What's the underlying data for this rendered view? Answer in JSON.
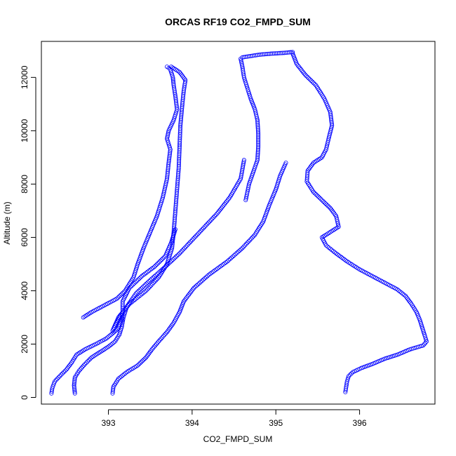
{
  "chart_data": {
    "type": "scatter",
    "title": "ORCAS RF19 CO2_FMPD_SUM",
    "xlabel": "CO2_FMPD_SUM",
    "ylabel": "Altitude (m)",
    "xlim": [
      392.2,
      396.9
    ],
    "ylim": [
      -250,
      13350
    ],
    "xticks": [
      393,
      394,
      395,
      396
    ],
    "yticks": [
      0,
      2000,
      4000,
      6000,
      8000,
      10000,
      12000
    ],
    "marker": "open-circle",
    "point_color": "#0000ff",
    "grid": false,
    "legend": "none",
    "series": [
      {
        "values": [
          [
            392.32,
            150
          ],
          [
            392.33,
            350
          ],
          [
            392.36,
            600
          ],
          [
            392.42,
            800
          ],
          [
            392.5,
            1050
          ],
          [
            392.56,
            1300
          ],
          [
            392.62,
            1600
          ],
          [
            392.72,
            1800
          ],
          [
            392.85,
            2000
          ],
          [
            392.97,
            2200
          ],
          [
            393.05,
            2400
          ],
          [
            393.12,
            2600
          ],
          [
            393.16,
            2900
          ],
          [
            393.17,
            3200
          ],
          [
            393.17,
            3600
          ],
          [
            393.25,
            4100
          ],
          [
            393.4,
            4550
          ],
          [
            393.55,
            4900
          ],
          [
            393.68,
            5300
          ],
          [
            393.75,
            5800
          ],
          [
            393.8,
            6300
          ]
        ]
      },
      {
        "values": [
          [
            392.6,
            150
          ],
          [
            392.59,
            450
          ],
          [
            392.6,
            750
          ],
          [
            392.65,
            1000
          ],
          [
            392.72,
            1250
          ],
          [
            392.8,
            1500
          ],
          [
            392.9,
            1700
          ],
          [
            393.0,
            1900
          ],
          [
            393.08,
            2100
          ],
          [
            393.13,
            2350
          ],
          [
            393.16,
            2650
          ],
          [
            393.18,
            3000
          ],
          [
            393.22,
            3400
          ],
          [
            393.33,
            3900
          ],
          [
            393.5,
            4400
          ],
          [
            393.68,
            4900
          ],
          [
            393.85,
            5400
          ],
          [
            394.0,
            5900
          ],
          [
            394.15,
            6400
          ],
          [
            394.3,
            6900
          ],
          [
            394.45,
            7500
          ],
          [
            394.58,
            8200
          ],
          [
            394.62,
            8900
          ]
        ]
      },
      {
        "values": [
          [
            393.05,
            150
          ],
          [
            393.06,
            400
          ],
          [
            393.12,
            700
          ],
          [
            393.22,
            950
          ],
          [
            393.35,
            1200
          ],
          [
            393.45,
            1500
          ],
          [
            393.52,
            1800
          ],
          [
            393.6,
            2100
          ],
          [
            393.7,
            2450
          ],
          [
            393.78,
            2800
          ],
          [
            393.85,
            3200
          ],
          [
            393.9,
            3600
          ],
          [
            394.02,
            4100
          ],
          [
            394.2,
            4600
          ],
          [
            394.42,
            5100
          ],
          [
            394.6,
            5600
          ],
          [
            394.75,
            6100
          ],
          [
            394.85,
            6600
          ],
          [
            394.92,
            7200
          ],
          [
            395.0,
            7800
          ],
          [
            395.05,
            8300
          ],
          [
            395.12,
            8800
          ]
        ]
      },
      {
        "values": [
          [
            392.7,
            3000
          ],
          [
            392.8,
            3200
          ],
          [
            392.95,
            3450
          ],
          [
            393.1,
            3700
          ],
          [
            393.2,
            4000
          ],
          [
            393.3,
            4500
          ],
          [
            393.35,
            5000
          ],
          [
            393.42,
            5600
          ],
          [
            393.5,
            6200
          ],
          [
            393.58,
            6800
          ],
          [
            393.65,
            7500
          ],
          [
            393.7,
            8200
          ],
          [
            393.72,
            8800
          ],
          [
            393.74,
            9300
          ],
          [
            393.7,
            9700
          ],
          [
            393.72,
            10000
          ],
          [
            393.78,
            10400
          ],
          [
            393.82,
            10800
          ],
          [
            393.8,
            11300
          ],
          [
            393.78,
            11700
          ],
          [
            393.77,
            12000
          ],
          [
            393.74,
            12300
          ],
          [
            393.7,
            12400
          ]
        ]
      },
      {
        "values": [
          [
            393.15,
            3100
          ],
          [
            393.1,
            2800
          ],
          [
            393.05,
            2500
          ],
          [
            393.12,
            3000
          ],
          [
            393.25,
            3500
          ],
          [
            393.45,
            4000
          ],
          [
            393.6,
            4500
          ],
          [
            393.7,
            5000
          ],
          [
            393.76,
            5600
          ],
          [
            393.78,
            6200
          ],
          [
            393.8,
            7000
          ],
          [
            393.82,
            7800
          ],
          [
            393.84,
            8600
          ],
          [
            393.85,
            9400
          ],
          [
            393.86,
            10200
          ],
          [
            393.88,
            10900
          ],
          [
            393.9,
            11500
          ],
          [
            393.92,
            11900
          ],
          [
            393.85,
            12200
          ],
          [
            393.75,
            12400
          ]
        ]
      },
      {
        "values": [
          [
            394.58,
            12700
          ],
          [
            394.6,
            12400
          ],
          [
            394.62,
            12000
          ],
          [
            394.66,
            11600
          ],
          [
            394.7,
            11200
          ],
          [
            394.75,
            10800
          ],
          [
            394.78,
            10400
          ],
          [
            394.79,
            9900
          ],
          [
            394.79,
            9400
          ],
          [
            394.78,
            8900
          ],
          [
            394.73,
            8450
          ],
          [
            394.68,
            8000
          ],
          [
            394.64,
            7400
          ]
        ]
      },
      {
        "values": [
          [
            394.6,
            12750
          ],
          [
            394.7,
            12800
          ],
          [
            394.8,
            12850
          ],
          [
            394.9,
            12880
          ],
          [
            395.0,
            12900
          ],
          [
            395.1,
            12920
          ],
          [
            395.2,
            12950
          ]
        ]
      },
      {
        "values": [
          [
            395.2,
            12900
          ],
          [
            395.25,
            12500
          ],
          [
            395.35,
            12100
          ],
          [
            395.48,
            11700
          ],
          [
            395.58,
            11200
          ],
          [
            395.65,
            10700
          ],
          [
            395.67,
            10200
          ],
          [
            395.63,
            9700
          ],
          [
            395.6,
            9300
          ],
          [
            395.55,
            9000
          ],
          [
            395.45,
            8800
          ],
          [
            395.38,
            8500
          ],
          [
            395.37,
            8100
          ],
          [
            395.45,
            7700
          ],
          [
            395.55,
            7400
          ],
          [
            395.65,
            7100
          ],
          [
            395.72,
            6800
          ],
          [
            395.75,
            6400
          ],
          [
            395.65,
            6200
          ],
          [
            395.55,
            6000
          ],
          [
            395.6,
            5700
          ],
          [
            395.72,
            5400
          ],
          [
            395.85,
            5100
          ],
          [
            396.0,
            4800
          ],
          [
            396.15,
            4550
          ],
          [
            396.3,
            4300
          ],
          [
            396.45,
            4050
          ],
          [
            396.55,
            3800
          ],
          [
            396.62,
            3500
          ],
          [
            396.68,
            3200
          ],
          [
            396.72,
            2900
          ],
          [
            396.75,
            2600
          ],
          [
            396.78,
            2300
          ],
          [
            396.8,
            2100
          ],
          [
            396.76,
            1950
          ],
          [
            396.6,
            1800
          ],
          [
            396.45,
            1600
          ],
          [
            396.3,
            1450
          ],
          [
            396.15,
            1250
          ],
          [
            396.02,
            1100
          ],
          [
            395.92,
            950
          ],
          [
            395.87,
            800
          ],
          [
            395.85,
            600
          ],
          [
            395.84,
            400
          ],
          [
            395.83,
            200
          ]
        ]
      }
    ]
  }
}
